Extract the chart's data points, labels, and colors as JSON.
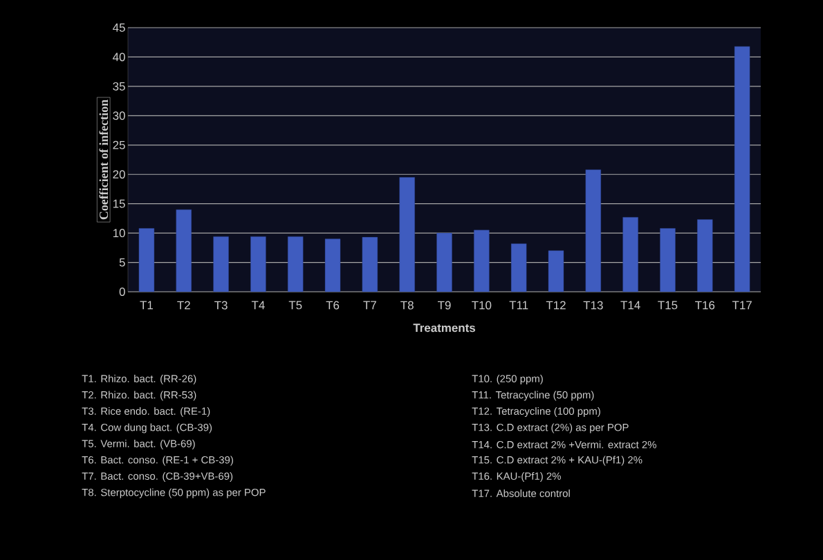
{
  "chart_data": {
    "type": "bar",
    "xlabel": "Treatments",
    "ylabel": "Coefficient of infection",
    "categories": [
      "T1",
      "T2",
      "T3",
      "T4",
      "T5",
      "T6",
      "T7",
      "T8",
      "T9",
      "T10",
      "T11",
      "T12",
      "T13",
      "T14",
      "T15",
      "T16",
      "T17"
    ],
    "values": [
      10.8,
      14,
      9.4,
      9.4,
      9.4,
      9,
      9.3,
      19.5,
      10,
      10.5,
      8.2,
      7,
      20.8,
      12.7,
      10.8,
      12.3,
      41.8
    ],
    "color": "#3f5cbf",
    "ylim": [
      0,
      45
    ],
    "yticks": [
      0,
      5,
      10,
      15,
      20,
      25,
      30,
      35,
      40,
      45
    ],
    "grid": "y",
    "annotations": [
      "T1. Rhizo. bact. (RR-26)",
      "T2. Rhizo. bact. (RR-53)",
      "T3. Rice endo. bact. (RE-1)",
      "T4. Cow dung bact. (CB-39)",
      "T5. Vermi. bact. (VB-69)",
      "T6. Bact. conso. (RE-1 + CB-39)",
      "T7. Bact. conso. (CB-39+VB-69)",
      "T8. Sterptocycline (50 ppm) as per POP",
      "T10. (250 ppm)",
      "T11. Tetracycline (50 ppm)",
      "T12. Tetracycline (100 ppm)",
      "T13.  C.D extract (2%) as per POP",
      "T14.  C.D extract 2% +Vermi. extract 2%",
      "T15.  C.D extract 2% + KAU-(Pf1) 2%",
      "T16.  KAU-(Pf1) 2%",
      "T17.  Absolute control"
    ]
  }
}
